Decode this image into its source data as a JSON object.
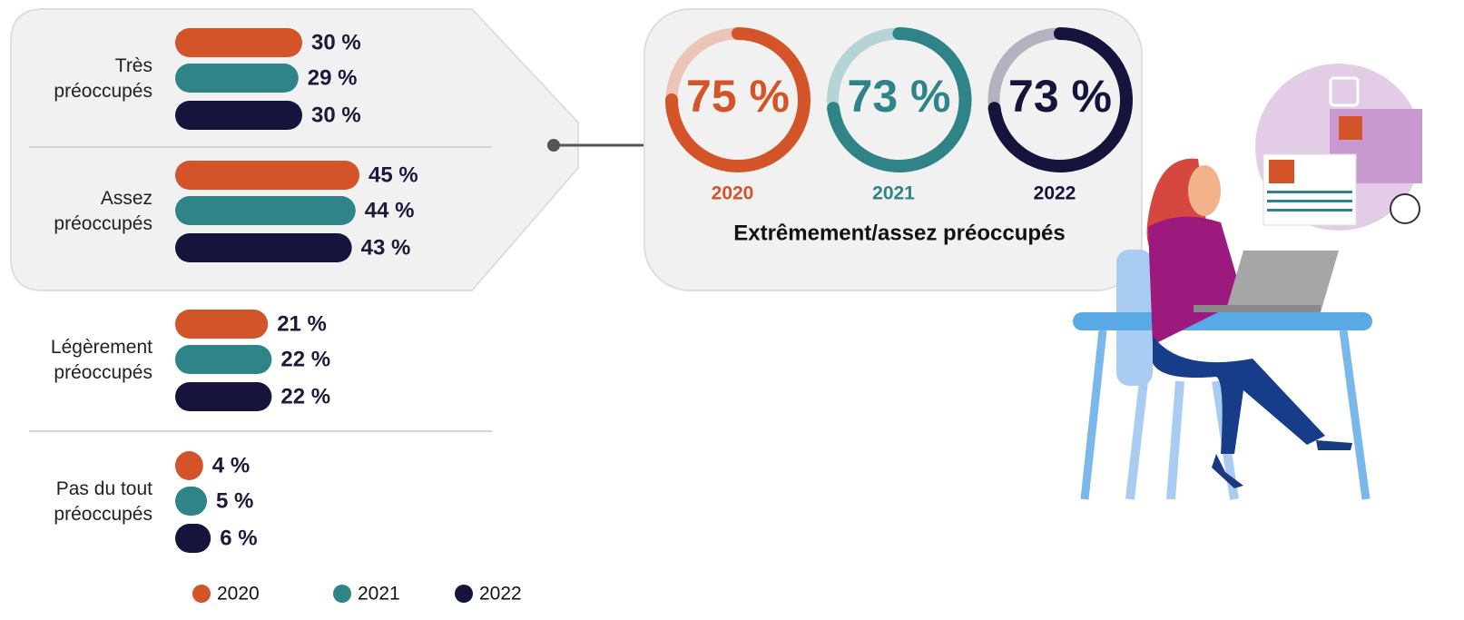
{
  "chart_data": [
    {
      "type": "bar",
      "orientation": "horizontal",
      "categories": [
        "Très préoccupés",
        "Assez préoccupés",
        "Légèrement préoccupés",
        "Pas du tout préoccupés"
      ],
      "series": [
        {
          "name": "2020",
          "color": "#d35428",
          "values": [
            30,
            45,
            21,
            4
          ],
          "value_labels": [
            "30 %",
            "45 %",
            "21 %",
            "4 %"
          ]
        },
        {
          "name": "2021",
          "color": "#2e8486",
          "values": [
            29,
            44,
            22,
            5
          ],
          "value_labels": [
            "29 %",
            "44 %",
            "22 %",
            "5 %"
          ]
        },
        {
          "name": "2022",
          "color": "#14143c",
          "values": [
            30,
            43,
            22,
            6
          ],
          "value_labels": [
            "30 %",
            "43 %",
            "22 %",
            "6 %"
          ]
        }
      ],
      "legend": "bottom"
    },
    {
      "type": "donut",
      "title": "Extrêmement/assez préoccupés",
      "categories": [
        "2020",
        "2021",
        "2022"
      ],
      "values": [
        75,
        73,
        73
      ],
      "value_labels": [
        "75 %",
        "73 %",
        "73 %"
      ],
      "colors": [
        "#d35428",
        "#2e8486",
        "#14143c"
      ],
      "track_colors": [
        "#ecc4b8",
        "#b7d4d4",
        "#b3b3c0"
      ]
    }
  ]
}
